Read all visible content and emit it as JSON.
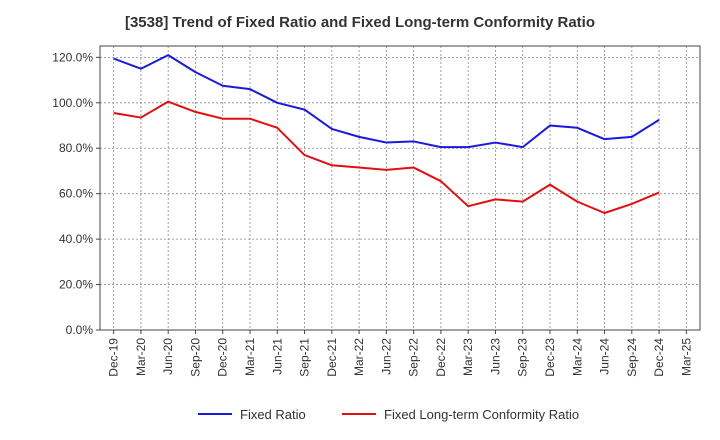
{
  "chart_data": {
    "type": "line",
    "title": "[3538]  Trend of Fixed Ratio and Fixed Long-term Conformity Ratio",
    "x": [
      "Dec-19",
      "Mar-20",
      "Jun-20",
      "Sep-20",
      "Dec-20",
      "Mar-21",
      "Jun-21",
      "Sep-21",
      "Dec-21",
      "Mar-22",
      "Jun-22",
      "Sep-22",
      "Dec-22",
      "Mar-23",
      "Jun-23",
      "Sep-23",
      "Dec-23",
      "Mar-24",
      "Jun-24",
      "Sep-24",
      "Dec-24",
      "Mar-25"
    ],
    "yticks": [
      "0.0%",
      "20.0%",
      "40.0%",
      "60.0%",
      "80.0%",
      "100.0%",
      "120.0%"
    ],
    "ylim": [
      0,
      125
    ],
    "grid": true,
    "legend_position": "bottom",
    "series": [
      {
        "name": "Fixed Ratio",
        "color": "#1a1adb",
        "values": [
          119.5,
          115,
          121,
          113.5,
          107.5,
          106,
          100,
          97,
          88.5,
          85,
          82.5,
          83,
          80.5,
          80.5,
          82.5,
          80.5,
          90,
          89,
          84,
          85,
          92.5,
          null
        ]
      },
      {
        "name": "Fixed Long-term Conformity Ratio",
        "color": "#e01010",
        "values": [
          95.5,
          93.5,
          100.5,
          96,
          93,
          93,
          89,
          77,
          72.5,
          71.5,
          70.5,
          71.5,
          65.5,
          54.5,
          57.5,
          56.5,
          64,
          56.5,
          51.5,
          55.5,
          60.5,
          null
        ]
      }
    ]
  }
}
